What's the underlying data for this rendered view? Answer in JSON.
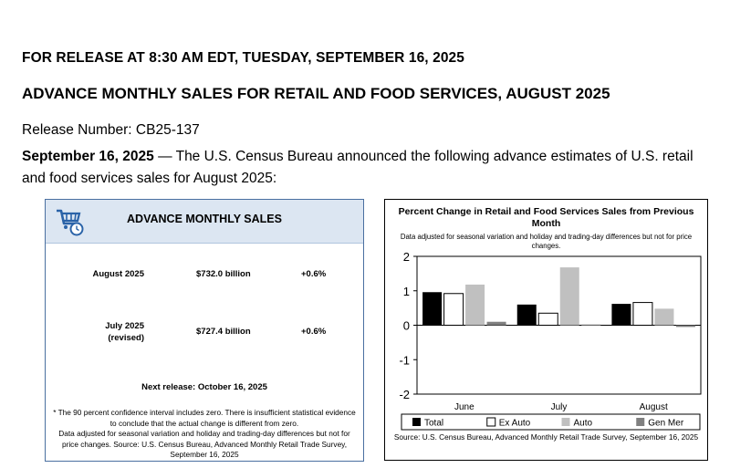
{
  "header": {
    "release_line": "FOR RELEASE AT 8:30 AM EDT, TUESDAY, SEPTEMBER 16, 2025",
    "title": "ADVANCE MONTHLY SALES FOR RETAIL AND FOOD SERVICES, AUGUST 2025",
    "release_number": "Release Number: CB25-137"
  },
  "intro": {
    "date": "September 16, 2025",
    "text": " — The U.S. Census Bureau announced the following advance estimates of U.S. retail and food services sales for August 2025:"
  },
  "sales_box": {
    "title": "ADVANCE MONTHLY SALES",
    "icon": "shopping-cart-clock-icon",
    "rows": [
      {
        "period": "August 2025",
        "period_note": "",
        "value": "$732.0 billion",
        "change": "+0.6%"
      },
      {
        "period": "July 2025",
        "period_note": "(revised)",
        "value": "$727.4 billion",
        "change": "+0.6%"
      }
    ],
    "next_release": "Next release: October 16, 2025",
    "footnote_1": "* The 90 percent confidence interval includes zero. There is insufficient statistical evidence to conclude that the actual change is different from zero.",
    "footnote_2": "Data adjusted for seasonal variation and holiday and trading-day differences but not for price changes. Source: U.S. Census Bureau, Advanced Monthly Retail Trade Survey, September 16, 2025"
  },
  "chart_data": {
    "type": "bar",
    "title": "Percent Change in Retail and Food Services Sales from Previous Month",
    "subtitle": "Data adjusted for seasonal variation and holiday and trading-day differences but not for price changes.",
    "categories": [
      "June",
      "July",
      "August"
    ],
    "series": [
      {
        "name": "Total",
        "values": [
          0.96,
          0.6,
          0.62
        ],
        "color": "#000000"
      },
      {
        "name": "Ex Auto",
        "values": [
          0.92,
          0.35,
          0.66
        ],
        "color": "#ffffff"
      },
      {
        "name": "Auto",
        "values": [
          1.18,
          1.68,
          0.48
        ],
        "color": "#c0c0c0"
      },
      {
        "name": "Gen Mer",
        "values": [
          0.1,
          0.02,
          -0.05
        ],
        "color": "#808080"
      }
    ],
    "yticks": [
      "2",
      "1",
      "0",
      "-1",
      "-2"
    ],
    "ylim": [
      -2,
      2
    ],
    "grid": false,
    "legend_position": "bottom",
    "source": "Source: U.S. Census Bureau, Advanced Monthly Retail Trade Survey, September 16, 2025"
  }
}
